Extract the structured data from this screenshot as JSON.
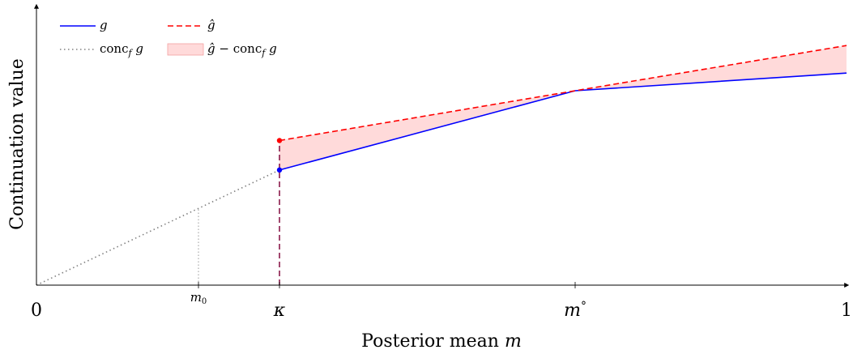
{
  "chart_data": {
    "type": "line",
    "title": "",
    "xlabel": "Posterior mean m",
    "ylabel": "Continuation value",
    "xlim": [
      0,
      1
    ],
    "ylim": [
      0,
      1
    ],
    "grid": false,
    "legend_position": "top-left",
    "x_ticks": [
      {
        "value": 0,
        "label": "0",
        "size": "large"
      },
      {
        "value": 0.2,
        "label": "m0",
        "size": "small"
      },
      {
        "value": 0.3,
        "label": "κ",
        "size": "large"
      },
      {
        "value": 0.665,
        "label": "m°",
        "size": "large"
      },
      {
        "value": 1,
        "label": "1",
        "size": "large"
      }
    ],
    "series": [
      {
        "name": "g",
        "style": "solid",
        "color": "#0000ff",
        "x": [
          0.3,
          0.665,
          1
        ],
        "y": [
          0.418,
          0.706,
          0.77
        ]
      },
      {
        "name": "ĝ",
        "style": "dashed",
        "color": "#ff0000",
        "x": [
          0.3,
          0.665,
          1
        ],
        "y": [
          0.525,
          0.706,
          0.87
        ]
      },
      {
        "name": "conc_f g",
        "style": "dotted",
        "color": "#808080",
        "x": [
          0,
          0.3
        ],
        "y": [
          0,
          0.418
        ]
      }
    ],
    "fill": {
      "name": "ĝ − conc_f g",
      "color": "#ffdada",
      "between": [
        "ĝ",
        "g"
      ]
    },
    "annotations": {
      "m0_dotted_line": {
        "x": 0.2,
        "y_top": 0.279
      },
      "kappa_dashed_line": {
        "x": 0.3,
        "y_top": 0.525
      },
      "points": [
        {
          "x": 0.3,
          "y": 0.525,
          "color": "#ff0000"
        },
        {
          "x": 0.3,
          "y": 0.418,
          "color": "#0000ff"
        }
      ]
    },
    "legend": {
      "g": "g",
      "ghat": "ĝ",
      "conc": "conc",
      "conc_sub": "f",
      "conc_g": "g",
      "fill_label_ghat": "ĝ",
      "fill_label_minus": "−",
      "fill_label_conc": "conc",
      "fill_label_sub": "f",
      "fill_label_g": "g"
    }
  }
}
